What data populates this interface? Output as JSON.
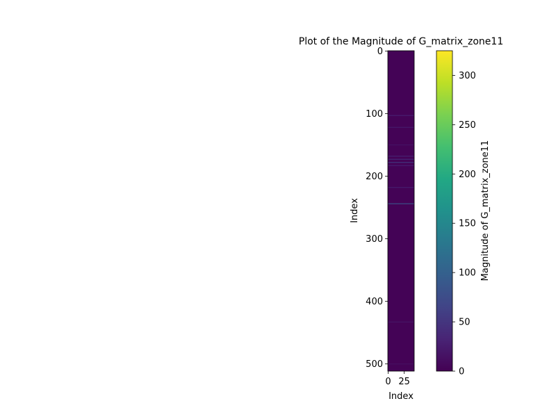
{
  "chart_data": {
    "type": "heatmap",
    "title": "Plot of the Magnitude of G_matrix_zone11",
    "xlabel": "Index",
    "ylabel": "Index",
    "xlim": [
      -0.5,
      40.5
    ],
    "ylim": [
      511.5,
      -0.5
    ],
    "x_ticks": [
      0,
      25
    ],
    "x_tick_labels": [
      "0",
      "25"
    ],
    "y_ticks": [
      0,
      100,
      200,
      300,
      400,
      500
    ],
    "y_tick_labels": [
      "0",
      "100",
      "200",
      "300",
      "400",
      "500"
    ],
    "colormap": "viridis",
    "colorbar": {
      "label": "Magnitude of G_matrix_zone11",
      "range": [
        0,
        325
      ],
      "ticks": [
        0,
        50,
        100,
        150,
        200,
        250,
        300
      ],
      "tick_labels": [
        "0",
        "50",
        "100",
        "150",
        "200",
        "250",
        "300"
      ]
    },
    "background_value": 2,
    "highlight_rows": [
      {
        "row": 103,
        "value": 30
      },
      {
        "row": 122,
        "value": 25
      },
      {
        "row": 150,
        "value": 18
      },
      {
        "row": 168,
        "value": 35
      },
      {
        "row": 173,
        "value": 40
      },
      {
        "row": 178,
        "value": 55
      },
      {
        "row": 183,
        "value": 30
      },
      {
        "row": 218,
        "value": 28
      },
      {
        "row": 244,
        "value": 90
      },
      {
        "row": 433,
        "value": 20
      },
      {
        "row": 500,
        "value": 15
      }
    ],
    "grid": false
  }
}
